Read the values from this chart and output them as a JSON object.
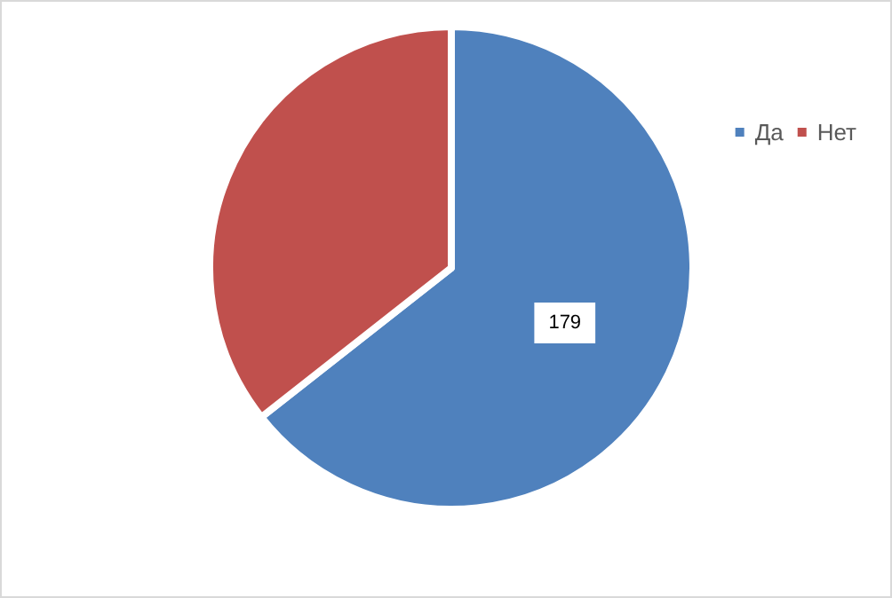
{
  "chart_data": {
    "type": "pie",
    "categories": [
      "Да",
      "Нет"
    ],
    "values": [
      179,
      99
    ],
    "colors": [
      "#4f81bd",
      "#c0504d"
    ],
    "value_labels": [
      "179",
      null
    ],
    "legend": "top right"
  }
}
